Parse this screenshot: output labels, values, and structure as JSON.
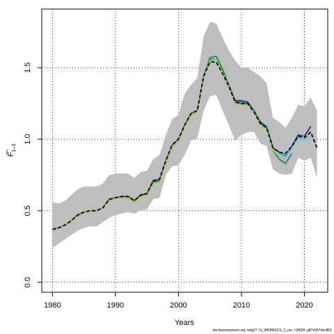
{
  "chart_data": {
    "type": "line",
    "xlabel": "Years",
    "ylabel_main": "F",
    "ylabel_sub": "1–3",
    "xlim": [
      1978.3,
      2023.7
    ],
    "ylim": [
      -0.07,
      1.91
    ],
    "xticks": [
      1980,
      1990,
      2000,
      2010,
      2020
    ],
    "yticks": [
      0.0,
      0.5,
      1.0,
      1.5
    ],
    "ytick_labels": [
      "0.0",
      "0.5",
      "1.0",
      "1.5"
    ],
    "grid": true,
    "band": {
      "color": "#bebebe",
      "x": [
        1980,
        1981,
        1982,
        1983,
        1984,
        1985,
        1986,
        1987,
        1988,
        1989,
        1990,
        1991,
        1992,
        1993,
        1994,
        1995,
        1996,
        1997,
        1998,
        1999,
        2000,
        2001,
        2002,
        2003,
        2004,
        2005,
        2006,
        2007,
        2008,
        2009,
        2010,
        2011,
        2012,
        2013,
        2014,
        2015,
        2016,
        2017,
        2018,
        2019,
        2020,
        2021,
        2022
      ],
      "upper": [
        0.56,
        0.55,
        0.57,
        0.61,
        0.65,
        0.67,
        0.67,
        0.67,
        0.69,
        0.75,
        0.76,
        0.76,
        0.76,
        0.73,
        0.77,
        0.78,
        0.86,
        0.89,
        1.03,
        1.14,
        1.17,
        1.32,
        1.38,
        1.43,
        1.72,
        1.82,
        1.81,
        1.71,
        1.62,
        1.55,
        1.5,
        1.5,
        1.47,
        1.44,
        1.39,
        1.15,
        1.12,
        1.08,
        1.15,
        1.24,
        1.23,
        1.29,
        1.2
      ],
      "lower": [
        0.24,
        0.27,
        0.3,
        0.33,
        0.36,
        0.38,
        0.39,
        0.39,
        0.42,
        0.45,
        0.47,
        0.48,
        0.49,
        0.48,
        0.5,
        0.51,
        0.58,
        0.59,
        0.75,
        0.81,
        0.82,
        0.89,
        0.99,
        1.01,
        1.2,
        1.3,
        1.31,
        1.2,
        1.1,
        0.99,
        1.03,
        1.05,
        1.05,
        0.97,
        0.95,
        0.79,
        0.76,
        0.75,
        0.76,
        0.87,
        0.85,
        0.87,
        0.73
      ]
    },
    "series": [
      {
        "color": "#1b1b6e",
        "dash": "",
        "width": 1.6,
        "x": [
          1980,
          1981,
          1982,
          1983,
          1984,
          1985,
          1986,
          1987,
          1988,
          1989,
          1990,
          1991,
          1992,
          1993,
          1994,
          1995,
          1996,
          1997,
          1998,
          1999,
          2000,
          2001,
          2002,
          2003,
          2004,
          2005,
          2006,
          2007,
          2008,
          2009,
          2010,
          2011,
          2012,
          2013,
          2014,
          2015,
          2016,
          2017,
          2018,
          2019,
          2020,
          2021
        ],
        "values": [
          0.37,
          0.38,
          0.4,
          0.43,
          0.47,
          0.49,
          0.5,
          0.5,
          0.52,
          0.58,
          0.59,
          0.6,
          0.6,
          0.57,
          0.61,
          0.62,
          0.71,
          0.72,
          0.85,
          0.96,
          1.0,
          1.1,
          1.18,
          1.2,
          1.44,
          1.55,
          1.56,
          1.48,
          1.38,
          1.27,
          1.27,
          1.26,
          1.2,
          1.12,
          1.09,
          0.94,
          0.91,
          0.89,
          0.95,
          1.03,
          1.02,
          1.09
        ]
      },
      {
        "color": "#1e88e5",
        "dash": "",
        "width": 1.6,
        "x": [
          1980,
          1981,
          1982,
          1983,
          1984,
          1985,
          1986,
          1987,
          1988,
          1989,
          1990,
          1991,
          1992,
          1993,
          1994,
          1995,
          1996,
          1997,
          1998,
          1999,
          2000,
          2001,
          2002,
          2003,
          2004,
          2005,
          2006,
          2007,
          2008,
          2009,
          2010,
          2011,
          2012,
          2013,
          2014,
          2015,
          2016,
          2017,
          2018,
          2019,
          2020
        ],
        "values": [
          0.37,
          0.38,
          0.4,
          0.43,
          0.47,
          0.49,
          0.5,
          0.5,
          0.52,
          0.58,
          0.59,
          0.6,
          0.6,
          0.57,
          0.6,
          0.62,
          0.7,
          0.72,
          0.85,
          0.96,
          1.0,
          1.1,
          1.18,
          1.2,
          1.44,
          1.56,
          1.56,
          1.48,
          1.38,
          1.26,
          1.26,
          1.25,
          1.2,
          1.11,
          1.09,
          0.93,
          0.9,
          0.88,
          0.94,
          1.02,
          1.02
        ]
      },
      {
        "color": "#1a8a5a",
        "dash": "",
        "width": 1.8,
        "x": [
          1980,
          1981,
          1982,
          1983,
          1984,
          1985,
          1986,
          1987,
          1988,
          1989,
          1990,
          1991,
          1992,
          1993,
          1994,
          1995,
          1996,
          1997,
          1998,
          1999,
          2000,
          2001,
          2002,
          2003,
          2004,
          2005,
          2006,
          2007,
          2008,
          2009,
          2010,
          2011,
          2012,
          2013,
          2014,
          2015,
          2016,
          2017,
          2018
        ],
        "values": [
          0.37,
          0.38,
          0.4,
          0.43,
          0.47,
          0.49,
          0.5,
          0.5,
          0.52,
          0.58,
          0.59,
          0.6,
          0.6,
          0.57,
          0.6,
          0.62,
          0.7,
          0.71,
          0.84,
          0.95,
          0.99,
          1.1,
          1.18,
          1.2,
          1.44,
          1.57,
          1.58,
          1.49,
          1.38,
          1.26,
          1.25,
          1.25,
          1.2,
          1.11,
          1.08,
          0.92,
          0.86,
          0.83,
          0.9
        ]
      },
      {
        "color": "#5cc8e6",
        "dash": "",
        "width": 1.6,
        "x": [
          2015,
          2016,
          2017,
          2018,
          2019,
          2020,
          2021
        ],
        "values": [
          0.93,
          0.9,
          0.89,
          0.94,
          1.01,
          0.99,
          1.02
        ]
      },
      {
        "color": "#9acd32",
        "dash": "",
        "width": 1.6,
        "x": [
          1980,
          1981,
          1982,
          1983,
          1984,
          1985,
          1986,
          1987,
          1988,
          1989,
          1990,
          1991,
          1992,
          1993,
          1994,
          1995,
          1996,
          1997,
          1998,
          1999,
          2000,
          2001,
          2002,
          2003,
          2004,
          2005,
          2006,
          2007,
          2008,
          2009,
          2010,
          2011,
          2012,
          2013,
          2014,
          2015,
          2016,
          2017
        ],
        "values": [
          0.36,
          0.38,
          0.4,
          0.43,
          0.46,
          0.49,
          0.5,
          0.5,
          0.52,
          0.57,
          0.59,
          0.59,
          0.59,
          0.56,
          0.6,
          0.61,
          0.69,
          0.7,
          0.84,
          0.95,
          0.99,
          1.09,
          1.17,
          1.19,
          1.43,
          1.55,
          1.56,
          1.47,
          1.37,
          1.25,
          1.24,
          1.24,
          1.19,
          1.1,
          1.07,
          0.92,
          0.88,
          0.86
        ]
      },
      {
        "color": "#000000",
        "dash": "5,3",
        "width": 1.8,
        "x": [
          1980,
          1981,
          1982,
          1983,
          1984,
          1985,
          1986,
          1987,
          1988,
          1989,
          1990,
          1991,
          1992,
          1993,
          1994,
          1995,
          1996,
          1997,
          1998,
          1999,
          2000,
          2001,
          2002,
          2003,
          2004,
          2005,
          2006,
          2007,
          2008,
          2009,
          2010,
          2011,
          2012,
          2013,
          2014,
          2015,
          2016,
          2017,
          2018,
          2019,
          2020,
          2021,
          2022
        ],
        "values": [
          0.37,
          0.38,
          0.4,
          0.43,
          0.47,
          0.49,
          0.5,
          0.5,
          0.52,
          0.58,
          0.59,
          0.6,
          0.6,
          0.57,
          0.61,
          0.62,
          0.71,
          0.72,
          0.85,
          0.96,
          1.0,
          1.1,
          1.18,
          1.2,
          1.44,
          1.54,
          1.54,
          1.46,
          1.37,
          1.26,
          1.25,
          1.25,
          1.19,
          1.11,
          1.08,
          0.94,
          0.91,
          0.9,
          0.95,
          1.02,
          1.01,
          1.05,
          0.94
        ]
      }
    ]
  },
  "footnote": "stockassessment.org, wkg27.7a_WKBNSCS_2_rec, r18699, g87e947dec851"
}
